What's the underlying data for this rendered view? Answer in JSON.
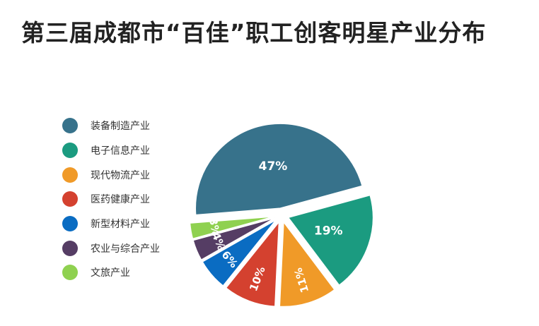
{
  "title": "第三届成都市“百佳”职工创客明星产业分布",
  "chart_data": {
    "type": "pie",
    "title": "第三届成都市“百佳”职工创客明星产业分布",
    "legend_position": "left",
    "slices": [
      {
        "label": "装备制造产业",
        "value": 47,
        "display": "47%",
        "color": "#37728b"
      },
      {
        "label": "电子信息产业",
        "value": 19,
        "display": "19%",
        "color": "#1b9b80"
      },
      {
        "label": "现代物流产业",
        "value": 11,
        "display": "11%",
        "color": "#f09a28"
      },
      {
        "label": "医药健康产业",
        "value": 10,
        "display": "10%",
        "color": "#d4412f"
      },
      {
        "label": "新型材料产业",
        "value": 6,
        "display": "6%",
        "color": "#0a6cc2"
      },
      {
        "label": "农业与综合产业",
        "value": 4,
        "display": "4%",
        "color": "#553d64"
      },
      {
        "label": "文旅产业",
        "value": 3,
        "display": "3%",
        "color": "#8fd150"
      }
    ]
  }
}
